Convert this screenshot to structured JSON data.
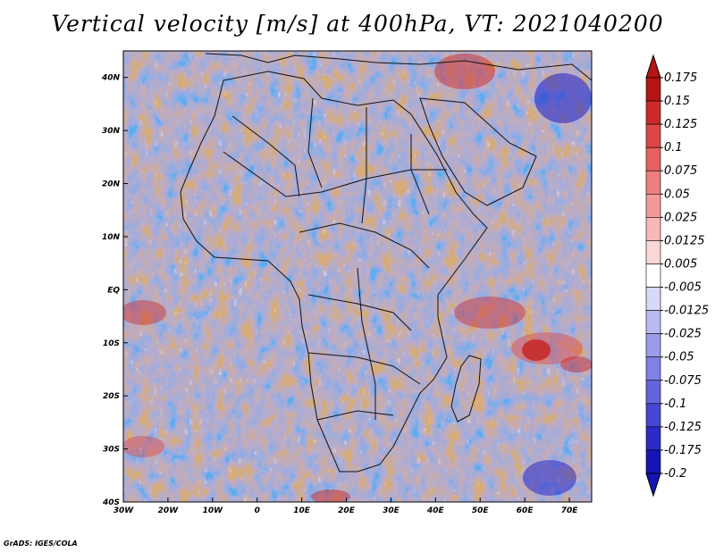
{
  "title": "Vertical velocity [m/s] at 400hPa, VT: 2021040200",
  "credit": "GrADS: IGES/COLA",
  "map": {
    "lon_range": [
      -30,
      75
    ],
    "lat_range": [
      -40,
      45
    ],
    "lat_ticks": [
      {
        "value": 40,
        "label": "40N"
      },
      {
        "value": 30,
        "label": "30N"
      },
      {
        "value": 20,
        "label": "20N"
      },
      {
        "value": 10,
        "label": "10N"
      },
      {
        "value": 0,
        "label": "EQ"
      },
      {
        "value": -10,
        "label": "10S"
      },
      {
        "value": -20,
        "label": "20S"
      },
      {
        "value": -30,
        "label": "30S"
      },
      {
        "value": -40,
        "label": "40S"
      }
    ],
    "lon_ticks": [
      {
        "value": -30,
        "label": "30W"
      },
      {
        "value": -20,
        "label": "20W"
      },
      {
        "value": -10,
        "label": "10W"
      },
      {
        "value": 0,
        "label": "0"
      },
      {
        "value": 10,
        "label": "10E"
      },
      {
        "value": 20,
        "label": "20E"
      },
      {
        "value": 30,
        "label": "30E"
      },
      {
        "value": 40,
        "label": "40E"
      },
      {
        "value": 50,
        "label": "50E"
      },
      {
        "value": 60,
        "label": "60E"
      },
      {
        "value": 70,
        "label": "70E"
      }
    ]
  },
  "colorbar": {
    "boundaries": [
      "0.175",
      "0.15",
      "0.125",
      "0.1",
      "0.075",
      "0.05",
      "0.025",
      "0.0125",
      "0.005",
      "-0.005",
      "-0.0125",
      "-0.025",
      "-0.05",
      "-0.075",
      "-0.1",
      "-0.125",
      "-0.175",
      "-0.2"
    ],
    "colors": [
      "#b41414",
      "#cc2a2a",
      "#dc4646",
      "#e66060",
      "#ee7e7e",
      "#f29a9a",
      "#f6b8b8",
      "#fad6d6",
      "#ffffff",
      "#d8d8f8",
      "#babaf2",
      "#9c9cec",
      "#8080e6",
      "#6464dc",
      "#4646d2",
      "#2a2ac6",
      "#1414b4"
    ]
  }
}
